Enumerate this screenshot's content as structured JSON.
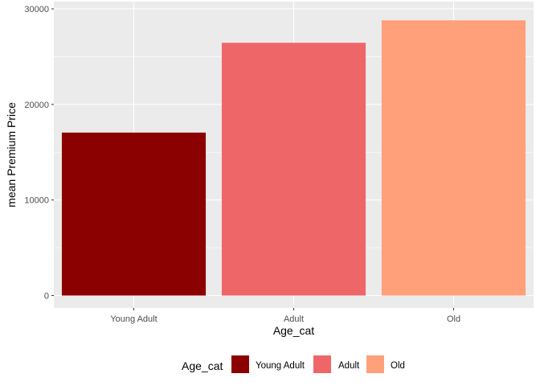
{
  "chart_data": {
    "type": "bar",
    "categories": [
      "Young Adult",
      "Adult",
      "Old"
    ],
    "values": [
      17050,
      26450,
      28800
    ],
    "colors": [
      "#8b0000",
      "#ef6669",
      "#ffa07a"
    ],
    "ylim": [
      -1500,
      30000
    ],
    "yticks": [
      0,
      10000,
      20000,
      30000
    ],
    "ytick_labels": [
      "0",
      "10000",
      "20000",
      "30000"
    ],
    "xlabel": "Age_cat",
    "ylabel": "mean Premium Price",
    "grid": true,
    "legend": {
      "title": "Age_cat",
      "position": "bottom",
      "entries": [
        "Young Adult",
        "Adult",
        "Old"
      ]
    },
    "panel_background": "#ebebeb",
    "grid_color": "#ffffff"
  }
}
